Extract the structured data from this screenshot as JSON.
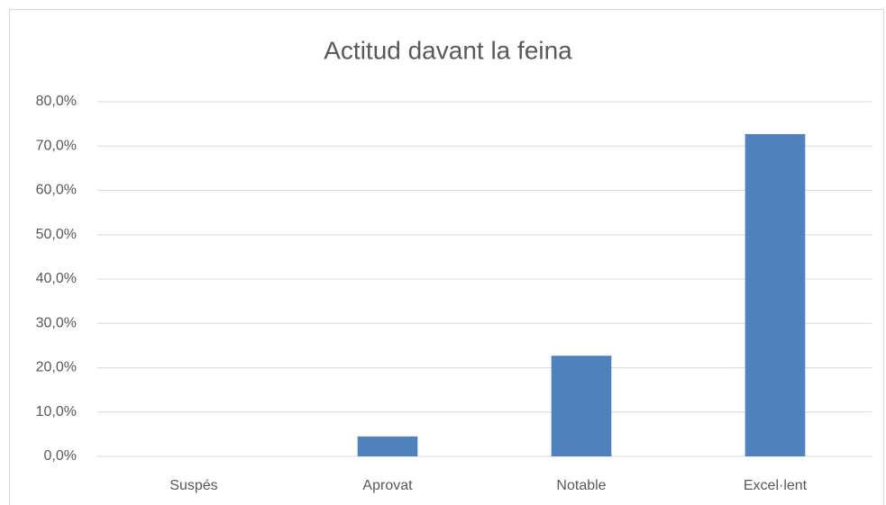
{
  "chart_data": {
    "type": "bar",
    "title": "Actitud davant la feina",
    "categories": [
      "Suspés",
      "Aprovat",
      "Notable",
      "Excel·lent"
    ],
    "values": [
      0,
      4.5,
      22.7,
      72.7
    ],
    "color": "#4f81bd",
    "ylim": [
      0,
      80
    ],
    "yticks": [
      {
        "value": 0,
        "label": "0,0%"
      },
      {
        "value": 10,
        "label": "10,0%"
      },
      {
        "value": 20,
        "label": "20,0%"
      },
      {
        "value": 30,
        "label": "30,0%"
      },
      {
        "value": 40,
        "label": "40,0%"
      },
      {
        "value": 50,
        "label": "50,0%"
      },
      {
        "value": 60,
        "label": "60,0%"
      },
      {
        "value": 70,
        "label": "70,0%"
      },
      {
        "value": 80,
        "label": "80,0%"
      }
    ],
    "grid": true
  }
}
